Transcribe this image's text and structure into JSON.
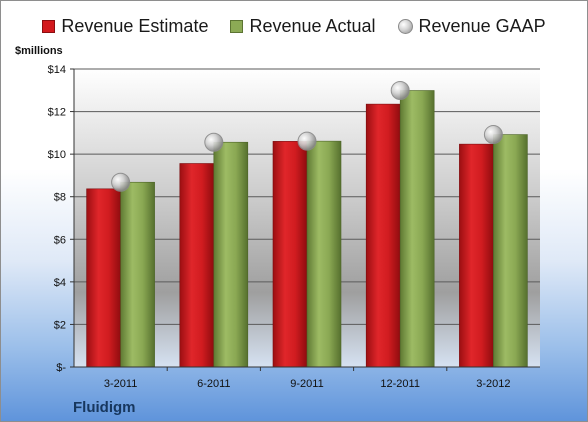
{
  "company": "Fluidigm",
  "units_label": "$millions",
  "legend": [
    {
      "label": "Revenue Estimate",
      "marker": "red-square"
    },
    {
      "label": "Revenue Actual",
      "marker": "green-square"
    },
    {
      "label": "Revenue GAAP",
      "marker": "gray-sphere"
    }
  ],
  "chart_data": {
    "type": "bar",
    "categories": [
      "3-2011",
      "6-2011",
      "9-2011",
      "12-2011",
      "3-2012"
    ],
    "series": [
      {
        "name": "Revenue Estimate",
        "type": "bar",
        "color": "#d3191d",
        "values": [
          8.37,
          9.56,
          10.6,
          12.35,
          10.47
        ]
      },
      {
        "name": "Revenue Actual",
        "type": "bar",
        "color": "#8caa55",
        "values": [
          8.68,
          10.56,
          10.61,
          12.99,
          10.92
        ]
      },
      {
        "name": "Revenue GAAP",
        "type": "marker",
        "color": "#b5b5b5",
        "values": [
          8.68,
          10.56,
          10.61,
          12.99,
          10.92
        ]
      }
    ],
    "ylabel": "$millions",
    "ylim": [
      0,
      14
    ],
    "yticks": [
      0,
      2,
      4,
      6,
      8,
      10,
      12,
      14
    ],
    "ytick_labels": [
      "$-",
      "$2",
      "$4",
      "$6",
      "$8",
      "$10",
      "$12",
      "$14"
    ],
    "grid": true,
    "legend_position": "top"
  }
}
